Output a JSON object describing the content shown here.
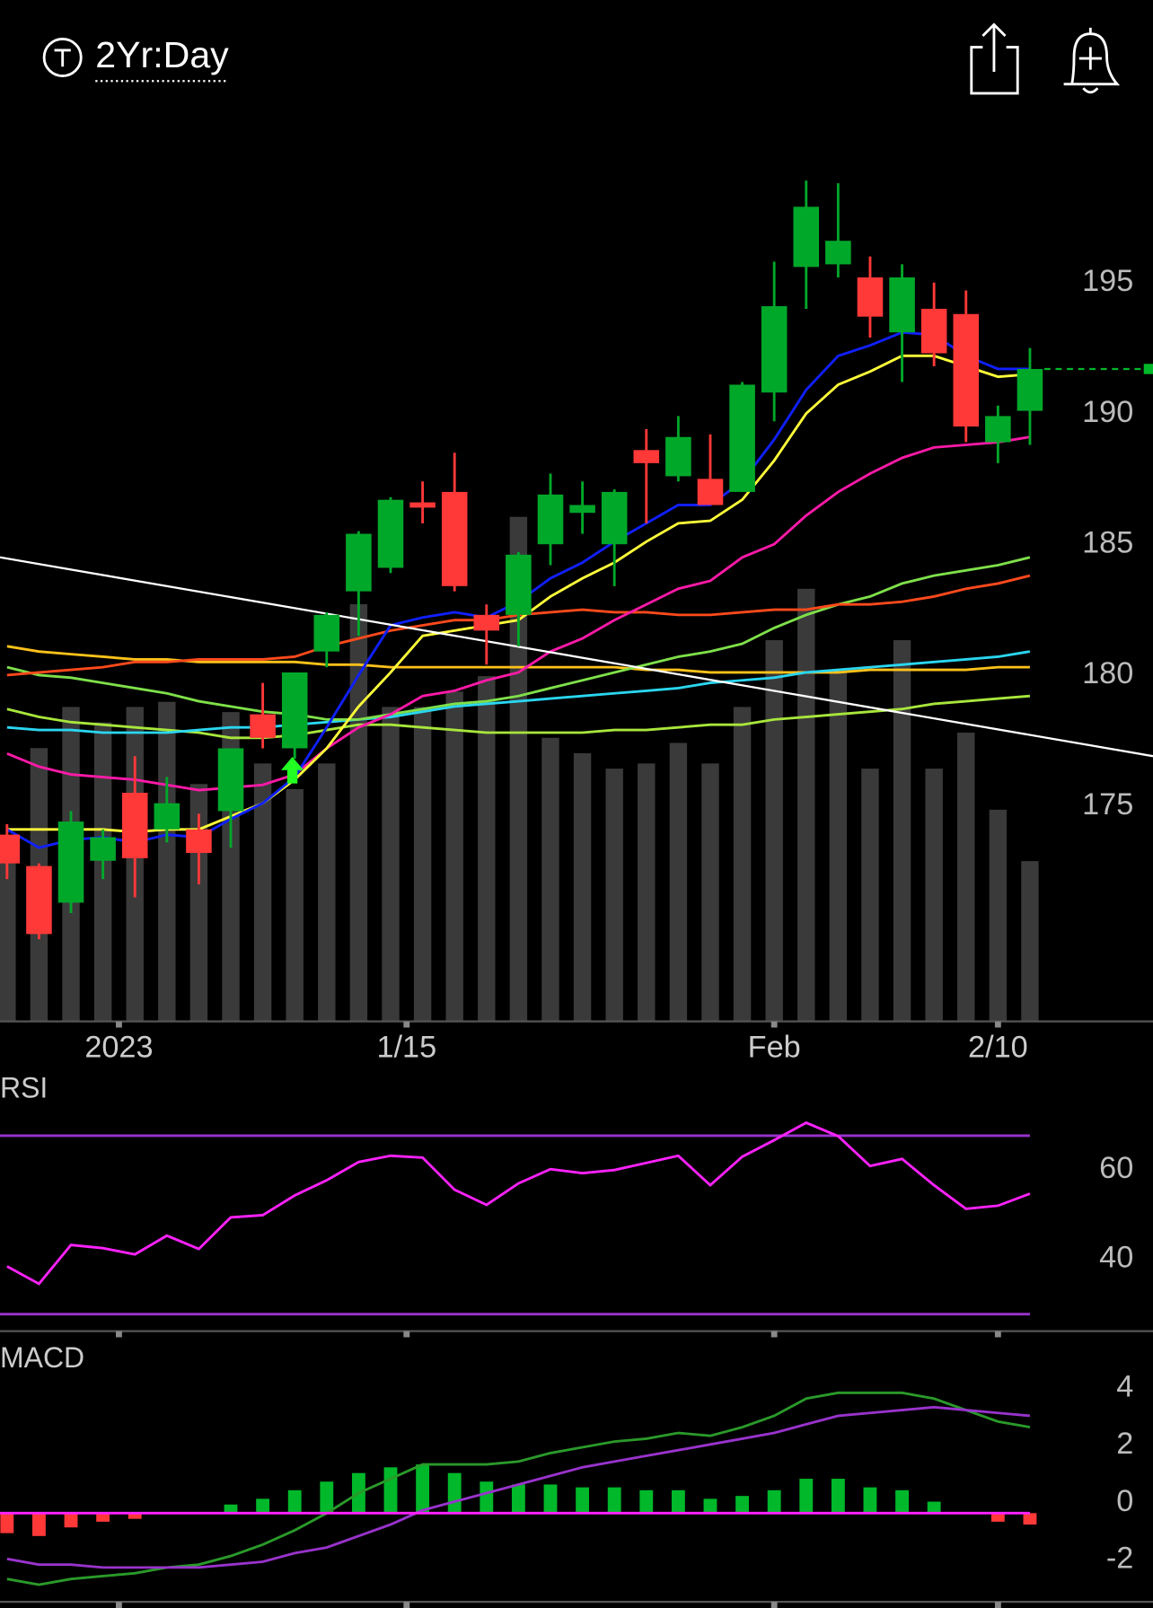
{
  "header": {
    "period": "2Yr:Day"
  },
  "chart_data": [
    {
      "type": "candlestick",
      "xlim": [
        -0.22,
        35.85
      ],
      "xticks": [
        {
          "value": 3.5,
          "label": "2023"
        },
        {
          "value": 12.5,
          "label": "1/15"
        },
        {
          "value": 24,
          "label": "Feb"
        },
        {
          "value": 31,
          "label": "2/10"
        }
      ],
      "ylim": [
        167.2,
        201.5
      ],
      "yticks": [
        175,
        180,
        185,
        190,
        195
      ],
      "grid": true,
      "up_color": "#00a82a",
      "down_color": "#ff3838",
      "volume_color": "#3a3a3a",
      "open": [
        174.3,
        173.1,
        171.7,
        173.3,
        175.9,
        174.5,
        174.5,
        175.2,
        178.9,
        177.6,
        181.3,
        183.6,
        184.5,
        187.0,
        187.4,
        182.7,
        182.7,
        185.4,
        186.6,
        185.4,
        189.0,
        188.0,
        187.9,
        187.4,
        191.2,
        196.0,
        196.1,
        195.6,
        193.5,
        194.4,
        194.2,
        189.3,
        190.5
      ],
      "high": [
        174.7,
        173.2,
        175.2,
        174.5,
        177.3,
        176.5,
        175.1,
        177.6,
        180.1,
        180.5,
        182.8,
        185.9,
        187.2,
        187.8,
        188.9,
        183.1,
        185.1,
        188.1,
        187.8,
        187.5,
        189.8,
        190.3,
        189.6,
        191.6,
        196.2,
        199.3,
        199.2,
        196.4,
        196.1,
        195.4,
        195.1,
        190.7,
        192.9
      ],
      "low": [
        172.6,
        170.3,
        171.3,
        172.6,
        171.9,
        174.0,
        172.4,
        173.8,
        177.6,
        177.2,
        180.7,
        181.9,
        184.3,
        186.2,
        183.6,
        180.8,
        181.5,
        184.6,
        185.8,
        183.8,
        186.2,
        187.8,
        186.9,
        187.4,
        190.1,
        194.4,
        195.6,
        193.3,
        191.6,
        192.2,
        189.3,
        188.5,
        189.2
      ],
      "close": [
        173.2,
        170.5,
        174.8,
        174.2,
        173.4,
        175.5,
        173.6,
        177.6,
        178.0,
        180.5,
        182.7,
        185.8,
        187.1,
        186.8,
        183.8,
        182.1,
        185.0,
        187.3,
        186.9,
        187.4,
        188.5,
        189.5,
        186.9,
        191.5,
        194.5,
        198.3,
        197.0,
        194.1,
        195.6,
        192.7,
        189.9,
        190.3,
        192.1
      ],
      "volume": [
        33,
        53,
        61,
        58,
        61,
        62,
        46,
        60,
        50,
        45,
        50,
        81,
        61,
        61,
        64,
        67,
        98,
        55,
        52,
        49,
        50,
        54,
        50,
        61,
        74,
        84,
        68,
        49,
        74,
        49,
        56,
        41,
        31
      ],
      "series": [
        {
          "color": "#a8e63c",
          "values": [
            179.1,
            178.8,
            178.6,
            178.5,
            178.4,
            178.3,
            178.2,
            178.0,
            178.0,
            178.1,
            178.3,
            178.5,
            178.5,
            178.4,
            178.3,
            178.2,
            178.2,
            178.2,
            178.2,
            178.3,
            178.3,
            178.4,
            178.5,
            178.5,
            178.7,
            178.8,
            178.9,
            179.0,
            179.1,
            179.3,
            179.4,
            179.5,
            179.6
          ]
        },
        {
          "color": "#ffc21a",
          "values": [
            181.5,
            181.3,
            181.2,
            181.1,
            181.0,
            181.0,
            180.9,
            180.9,
            180.9,
            180.9,
            180.8,
            180.8,
            180.7,
            180.7,
            180.7,
            180.7,
            180.7,
            180.7,
            180.7,
            180.7,
            180.6,
            180.6,
            180.5,
            180.5,
            180.5,
            180.5,
            180.5,
            180.6,
            180.6,
            180.6,
            180.6,
            180.7,
            180.7
          ]
        },
        {
          "color": "#2ad6f0",
          "values": [
            178.4,
            178.3,
            178.3,
            178.2,
            178.2,
            178.2,
            178.3,
            178.4,
            178.4,
            178.5,
            178.6,
            178.7,
            178.8,
            179.0,
            179.2,
            179.3,
            179.4,
            179.5,
            179.6,
            179.7,
            179.8,
            179.9,
            180.1,
            180.2,
            180.3,
            180.5,
            180.6,
            180.7,
            180.8,
            180.9,
            181.0,
            181.1,
            181.3
          ]
        },
        {
          "color": "#7fe04a",
          "values": [
            180.7,
            180.4,
            180.3,
            180.1,
            179.9,
            179.7,
            179.4,
            179.2,
            179.0,
            178.9,
            178.7,
            178.7,
            178.9,
            179.1,
            179.3,
            179.4,
            179.6,
            179.9,
            180.2,
            180.5,
            180.8,
            181.1,
            181.3,
            181.6,
            182.2,
            182.7,
            183.1,
            183.4,
            183.9,
            184.2,
            184.4,
            184.6,
            184.9
          ]
        },
        {
          "color": "#ff4a1c",
          "values": [
            180.4,
            180.5,
            180.6,
            180.7,
            180.9,
            180.9,
            181.0,
            181.0,
            181.0,
            181.1,
            181.5,
            181.8,
            182.1,
            182.3,
            182.5,
            182.5,
            182.7,
            182.8,
            182.9,
            182.8,
            182.8,
            182.7,
            182.7,
            182.8,
            182.9,
            182.9,
            183.1,
            183.1,
            183.2,
            183.4,
            183.7,
            183.9,
            184.2
          ]
        },
        {
          "color": "#ff1aa8",
          "values": [
            177.4,
            176.9,
            176.6,
            176.5,
            176.4,
            176.2,
            176.0,
            176.1,
            176.2,
            176.6,
            177.6,
            178.4,
            178.9,
            179.6,
            179.8,
            180.2,
            180.5,
            181.3,
            181.8,
            182.5,
            183.1,
            183.7,
            184.0,
            184.9,
            185.4,
            186.5,
            187.4,
            188.1,
            188.7,
            189.1,
            189.2,
            189.3,
            189.5
          ]
        },
        {
          "color": "#ffff3a",
          "values": [
            174.5,
            174.5,
            174.5,
            174.5,
            174.4,
            174.5,
            174.5,
            175.0,
            175.5,
            176.4,
            177.6,
            179.2,
            180.5,
            181.9,
            182.1,
            182.3,
            182.5,
            183.4,
            184.1,
            184.7,
            185.5,
            186.2,
            186.3,
            187.1,
            188.6,
            190.4,
            191.5,
            192.0,
            192.6,
            192.6,
            192.2,
            191.8,
            191.9
          ]
        },
        {
          "color": "#1020ff",
          "values": [
            174.5,
            173.8,
            174.1,
            174.2,
            174.0,
            174.3,
            174.2,
            174.9,
            175.5,
            176.5,
            178.4,
            180.4,
            182.3,
            182.6,
            182.8,
            182.6,
            183.2,
            184.1,
            184.7,
            185.5,
            186.2,
            186.9,
            186.9,
            187.8,
            189.4,
            191.3,
            192.6,
            193.0,
            193.5,
            193.4,
            192.6,
            192.1,
            192.1
          ]
        }
      ],
      "trendline": {
        "color": "#ffffff",
        "values": [
          184.9,
          177.3
        ]
      },
      "last_price": 192.1,
      "last_price_color": "#00b82a"
    },
    {
      "type": "line",
      "title": "RSI",
      "values": [
        40.7,
        36.8,
        45.5,
        44.8,
        43.4,
        47.6,
        44.6,
        51.7,
        52.2,
        56.6,
        60.0,
        64.1,
        65.5,
        65.1,
        57.9,
        54.5,
        59.3,
        62.5,
        61.6,
        62.3,
        63.9,
        65.5,
        58.9,
        65.3,
        69.0,
        72.9,
        69.9,
        63.2,
        64.8,
        58.9,
        53.6,
        54.3,
        57.0
      ],
      "color": "#ff22ff",
      "levels": [
        70,
        30
      ],
      "level_color": "#9933cc",
      "ylim": [
        26.2,
        83.2
      ],
      "yticks": [
        40,
        60
      ],
      "grid": true
    },
    {
      "type": "macd",
      "title": "MACD",
      "series": [
        {
          "color": "#2a9a2a",
          "values": [
            -2.3,
            -2.5,
            -2.3,
            -2.2,
            -2.1,
            -1.9,
            -1.8,
            -1.5,
            -1.1,
            -0.6,
            0.0,
            0.7,
            1.2,
            1.7,
            1.7,
            1.7,
            1.8,
            2.1,
            2.3,
            2.5,
            2.6,
            2.8,
            2.7,
            3.0,
            3.4,
            4.0,
            4.2,
            4.2,
            4.2,
            4.0,
            3.6,
            3.2,
            3.0
          ]
        },
        {
          "color": "#9933cc",
          "values": [
            -1.6,
            -1.8,
            -1.8,
            -1.9,
            -1.9,
            -1.9,
            -1.9,
            -1.8,
            -1.7,
            -1.4,
            -1.2,
            -0.8,
            -0.4,
            0.1,
            0.4,
            0.7,
            1.0,
            1.3,
            1.6,
            1.8,
            2.0,
            2.2,
            2.4,
            2.6,
            2.8,
            3.1,
            3.4,
            3.5,
            3.6,
            3.7,
            3.6,
            3.5,
            3.4
          ]
        }
      ],
      "histogram": [
        -0.7,
        -0.8,
        -0.5,
        -0.3,
        -0.2,
        0,
        0,
        0.3,
        0.5,
        0.8,
        1.1,
        1.4,
        1.6,
        1.7,
        1.4,
        1.1,
        1.0,
        1.0,
        0.9,
        0.9,
        0.8,
        0.8,
        0.5,
        0.6,
        0.8,
        1.2,
        1.2,
        0.9,
        0.8,
        0.4,
        0,
        -0.3,
        -0.4
      ],
      "pos_color": "#00b82a",
      "neg_color": "#ff3838",
      "zero_color": "#ff22ff",
      "ylim": [
        -3.1,
        6.0
      ],
      "yticks": [
        4,
        2,
        0,
        -2
      ],
      "grid": true
    }
  ]
}
